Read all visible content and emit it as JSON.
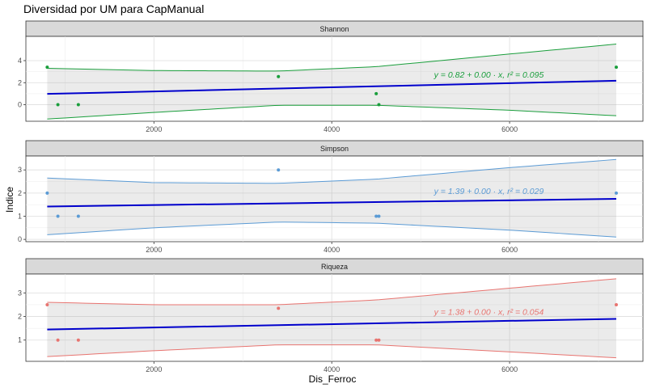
{
  "title": "Diversidad por UM para CapManual",
  "xlabel": "Dis_Ferroc",
  "ylabel": "Indice",
  "xlim": [
    560,
    7500
  ],
  "x_ticks": [
    2000,
    4000,
    6000
  ],
  "colors": {
    "panel_bg": "#ebebeb",
    "grid": "#ffffff",
    "strip_bg": "#d9d9d9",
    "strip_border": "#333333",
    "fit_line": "#0000cc",
    "ribbon": "#e6e6e6"
  },
  "chart_data": {
    "type": "scatter",
    "panels": [
      {
        "name": "Shannon",
        "color": "#1a9e3c",
        "ylim": [
          -1.5,
          6.2
        ],
        "y_ticks": [
          0,
          2,
          4
        ],
        "points": [
          {
            "x": 800,
            "y": 3.4
          },
          {
            "x": 920,
            "y": 0.0
          },
          {
            "x": 1150,
            "y": 0.0
          },
          {
            "x": 3400,
            "y": 2.55
          },
          {
            "x": 4500,
            "y": 1.0
          },
          {
            "x": 4530,
            "y": 0.0
          },
          {
            "x": 7200,
            "y": 3.4
          }
        ],
        "fit": {
          "x": [
            800,
            7200
          ],
          "y": [
            0.98,
            2.18
          ]
        },
        "ci_upper": {
          "x": [
            800,
            2000,
            3400,
            4500,
            6000,
            7200
          ],
          "y": [
            3.3,
            3.1,
            3.05,
            3.45,
            4.6,
            5.5
          ]
        },
        "ci_lower": {
          "x": [
            800,
            2000,
            3400,
            4500,
            6000,
            7200
          ],
          "y": [
            -1.3,
            -0.7,
            -0.05,
            -0.05,
            -0.5,
            -1.0
          ]
        },
        "equation": "y = 0.82 + 0.00 · x,  r² = 0.095"
      },
      {
        "name": "Simpson",
        "color": "#5b9bd5",
        "ylim": [
          -0.1,
          3.6
        ],
        "y_ticks": [
          0,
          1,
          2,
          3
        ],
        "points": [
          {
            "x": 800,
            "y": 2.0
          },
          {
            "x": 920,
            "y": 1.0
          },
          {
            "x": 1150,
            "y": 1.0
          },
          {
            "x": 3400,
            "y": 3.0
          },
          {
            "x": 4500,
            "y": 1.0
          },
          {
            "x": 4530,
            "y": 1.0
          },
          {
            "x": 7200,
            "y": 2.0
          }
        ],
        "fit": {
          "x": [
            800,
            7200
          ],
          "y": [
            1.42,
            1.75
          ]
        },
        "ci_upper": {
          "x": [
            800,
            2000,
            3400,
            4500,
            6000,
            7200
          ],
          "y": [
            2.65,
            2.45,
            2.42,
            2.6,
            3.1,
            3.45
          ]
        },
        "ci_lower": {
          "x": [
            800,
            2000,
            3400,
            4500,
            6000,
            7200
          ],
          "y": [
            0.2,
            0.5,
            0.75,
            0.7,
            0.4,
            0.1
          ]
        },
        "equation": "y = 1.39 + 0.00 · x,  r² = 0.029"
      },
      {
        "name": "Riqueza",
        "color": "#e87470",
        "ylim": [
          0.1,
          3.8
        ],
        "y_ticks": [
          1,
          2,
          3
        ],
        "points": [
          {
            "x": 800,
            "y": 2.5
          },
          {
            "x": 920,
            "y": 1.0
          },
          {
            "x": 1150,
            "y": 1.0
          },
          {
            "x": 3400,
            "y": 2.35
          },
          {
            "x": 4500,
            "y": 1.0
          },
          {
            "x": 4530,
            "y": 1.0
          },
          {
            "x": 7200,
            "y": 2.5
          }
        ],
        "fit": {
          "x": [
            800,
            7200
          ],
          "y": [
            1.45,
            1.9
          ]
        },
        "ci_upper": {
          "x": [
            800,
            2000,
            3400,
            4500,
            6000,
            7200
          ],
          "y": [
            2.6,
            2.5,
            2.5,
            2.7,
            3.2,
            3.6
          ]
        },
        "ci_lower": {
          "x": [
            800,
            2000,
            3400,
            4500,
            6000,
            7200
          ],
          "y": [
            0.3,
            0.55,
            0.8,
            0.8,
            0.5,
            0.25
          ]
        },
        "equation": "y = 1.38 + 0.00 · x,  r² = 0.054"
      }
    ]
  }
}
